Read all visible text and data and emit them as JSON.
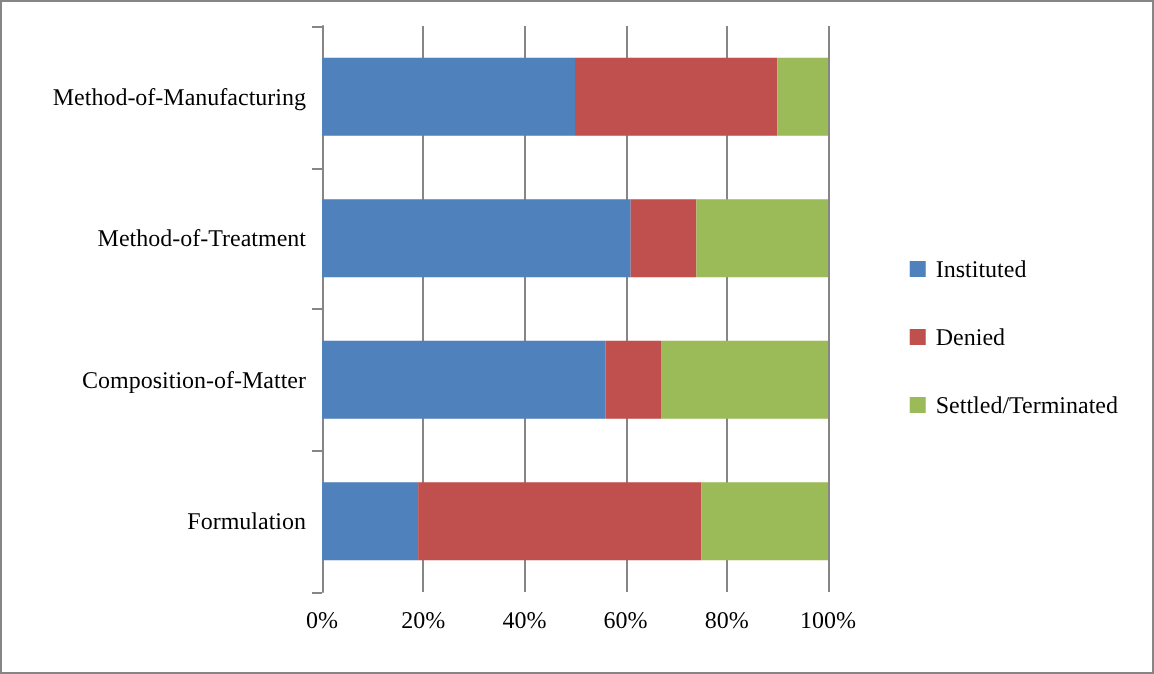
{
  "chart_data": {
    "type": "bar",
    "orientation": "horizontal",
    "stacked": true,
    "categories": [
      "Method-of-Manufacturing",
      "Method-of-Treatment",
      "Composition-of-Matter",
      "Formulation"
    ],
    "series": [
      {
        "name": "Instituted",
        "color": "#4f81bd",
        "values": [
          50,
          61,
          56,
          19
        ]
      },
      {
        "name": "Denied",
        "color": "#c0504d",
        "values": [
          40,
          13,
          11,
          56
        ]
      },
      {
        "name": "Settled/Terminated",
        "color": "#9bbb59",
        "values": [
          10,
          26,
          33,
          25
        ]
      }
    ],
    "xlim": [
      0,
      100
    ],
    "xticks": [
      {
        "value": 0,
        "label": "0%"
      },
      {
        "value": 20,
        "label": "20%"
      },
      {
        "value": 40,
        "label": "40%"
      },
      {
        "value": 60,
        "label": "60%"
      },
      {
        "value": 80,
        "label": "80%"
      },
      {
        "value": 100,
        "label": "100%"
      }
    ],
    "grid": "x",
    "legend": "right"
  }
}
